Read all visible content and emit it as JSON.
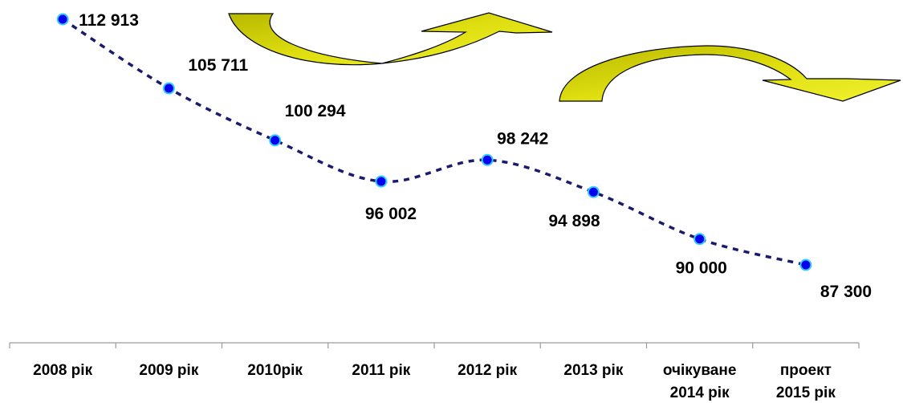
{
  "chart_data": {
    "type": "line",
    "title": "",
    "xlabel": "",
    "ylabel": "",
    "categories": [
      [
        "2008 рік"
      ],
      [
        "2009 рік"
      ],
      [
        "2010рік"
      ],
      [
        "2011 рік"
      ],
      [
        "2012 рік"
      ],
      [
        "2013 рік"
      ],
      [
        "очікуване",
        "2014 рік"
      ],
      [
        "проект",
        "2015 рік"
      ]
    ],
    "series": [
      {
        "values": [
          112913,
          105711,
          100294,
          96002,
          98242,
          94898,
          90000,
          87300
        ],
        "data_labels": [
          "112 913",
          "105 711",
          "100 294",
          "96 002",
          "98 242",
          "94 898",
          "90 000",
          "87 300"
        ],
        "line_style": "dotted",
        "line_color": "#1a1a6e",
        "marker_fill": "#0000ee",
        "marker_stroke": "#33ccff"
      }
    ],
    "ylim": [
      84000,
      114000
    ],
    "grid": false,
    "legend": "none",
    "decorations": [
      {
        "shape": "curved-arrow-up",
        "fill": "#cccc00",
        "stroke": "#000000"
      },
      {
        "shape": "curved-arrow-down",
        "fill": "#cccc00",
        "stroke": "#000000"
      }
    ]
  }
}
